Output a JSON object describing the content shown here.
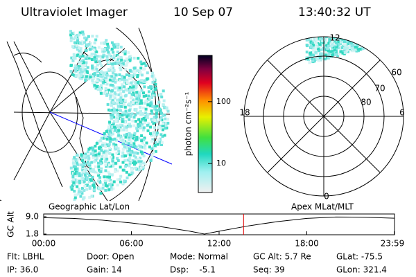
{
  "header": {
    "title": "Ultraviolet Imager",
    "date": "10 Sep 07",
    "time": "13:40:32 UT"
  },
  "colorbar": {
    "label": "photon cm⁻²s⁻¹",
    "lim": [
      3.4,
      560
    ],
    "log": true,
    "ticks": [
      10,
      100
    ]
  },
  "polar": {
    "labels": {
      "top": "12",
      "bottom": "0",
      "left": "18",
      "right": "6"
    },
    "rings": [
      "60",
      "70",
      "80"
    ]
  },
  "altitude_plot": {
    "left_label": "Geographic Lat/Lon",
    "right_label": "Apex MLat/MLT",
    "ylabel": "GC Alt",
    "xlim": [
      0,
      24
    ],
    "ylim": [
      1.8,
      9
    ],
    "xticks": [
      {
        "value": 0,
        "label": "00:00"
      },
      {
        "value": 6,
        "label": "06:00"
      },
      {
        "value": 12,
        "label": "12:00"
      },
      {
        "value": 18,
        "label": "18:00"
      },
      {
        "value": 23.98,
        "label": "23:59"
      }
    ],
    "yticks": [
      {
        "value": 1.8,
        "label": "1.8"
      },
      {
        "value": 9,
        "label": "9.0"
      }
    ],
    "x": [
      0,
      2,
      4,
      6,
      8,
      10,
      11,
      12,
      14,
      16,
      18,
      20,
      22,
      24
    ],
    "values": [
      8.6,
      8.3,
      7.6,
      6.4,
      4.9,
      3.0,
      1.8,
      3.0,
      5.2,
      7.0,
      8.3,
      8.9,
      8.8,
      8.4
    ],
    "marker_x": 13.675,
    "color": "#000000",
    "marker_color": "#e00000"
  },
  "footer": {
    "rows": [
      [
        "Flt: LBHL",
        "Door: Open",
        "Mode: Normal",
        "GC Alt: 5.7 Re",
        "GLat: -75.5"
      ],
      [
        "IP: 36.0",
        "Gain: 14",
        "Dsp:    -5.1",
        "Seq: 39",
        "GLon: 321.4"
      ]
    ]
  }
}
